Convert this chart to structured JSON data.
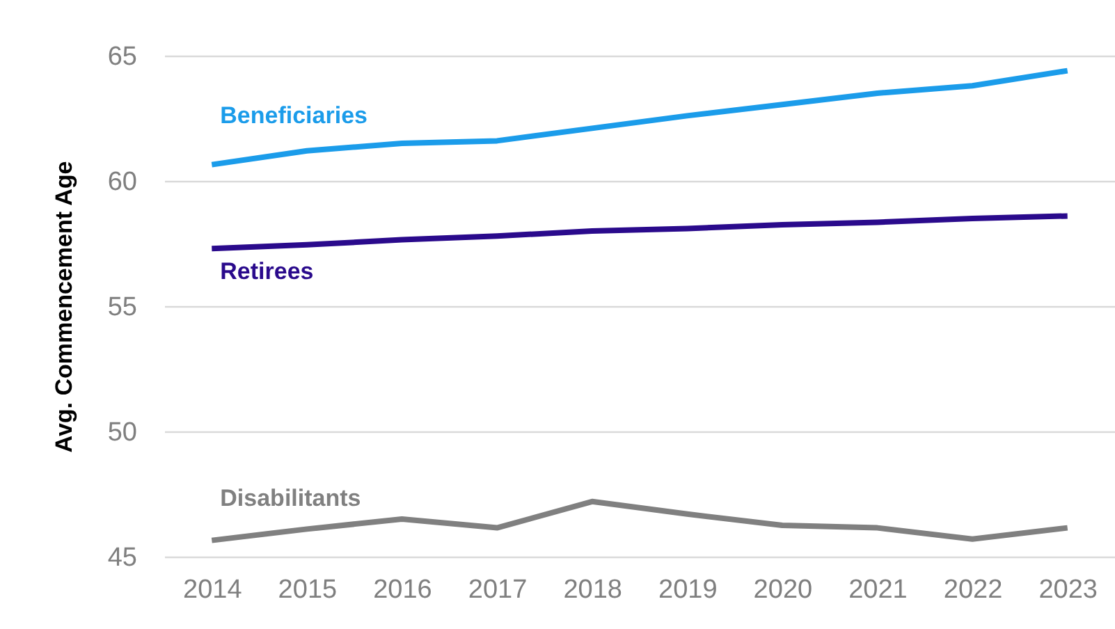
{
  "chart_data": {
    "type": "line",
    "ylabel": "Avg. Commencement Age",
    "categories": [
      "2014",
      "2015",
      "2016",
      "2017",
      "2018",
      "2019",
      "2020",
      "2021",
      "2022",
      "2023"
    ],
    "series": [
      {
        "name": "Beneficiaries",
        "color": "#1b9cea",
        "values": [
          60.65,
          61.2,
          61.5,
          61.6,
          62.1,
          62.6,
          63.05,
          63.5,
          63.8,
          64.4
        ]
      },
      {
        "name": "Retirees",
        "color": "#2a0a8c",
        "values": [
          57.3,
          57.45,
          57.65,
          57.8,
          58.0,
          58.1,
          58.25,
          58.35,
          58.5,
          58.6
        ]
      },
      {
        "name": "Disabilitants",
        "color": "#808080",
        "values": [
          45.65,
          46.1,
          46.5,
          46.15,
          47.2,
          46.7,
          46.25,
          46.15,
          45.7,
          46.15
        ]
      }
    ],
    "ylim": [
      45,
      65
    ],
    "yticks": [
      45,
      50,
      55,
      60,
      65
    ],
    "grid": "y",
    "legend": false
  }
}
